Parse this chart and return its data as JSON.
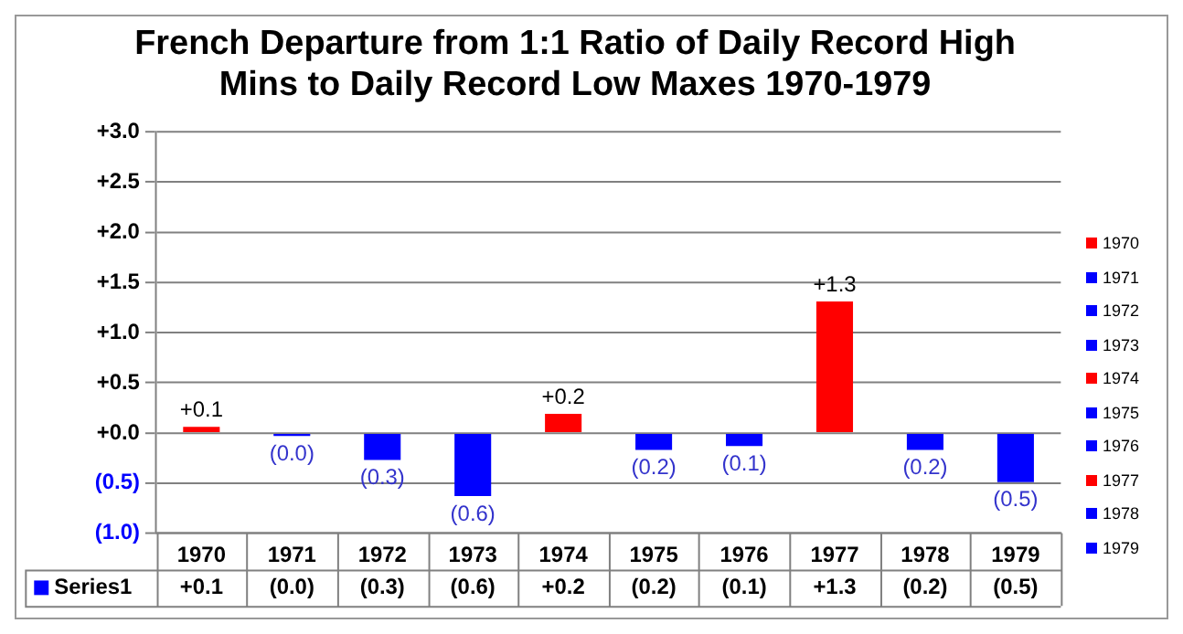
{
  "chart_data": {
    "type": "bar",
    "title": "French Departure from 1:1 Ratio of Daily Record High Mins to Daily Record Low Maxes 1970-1979",
    "categories": [
      "1970",
      "1971",
      "1972",
      "1973",
      "1974",
      "1975",
      "1976",
      "1977",
      "1978",
      "1979"
    ],
    "series": [
      {
        "name": "Series1",
        "color": "#0000ff",
        "colors": [
          "#ff0000",
          "#0000ff",
          "#0000ff",
          "#0000ff",
          "#ff0000",
          "#0000ff",
          "#0000ff",
          "#ff0000",
          "#0000ff",
          "#0000ff"
        ],
        "values": [
          0.06,
          -0.03,
          -0.27,
          -0.63,
          0.19,
          -0.17,
          -0.13,
          1.31,
          -0.17,
          -0.49
        ],
        "value_labels": [
          "+0.1",
          "(0.0)",
          "(0.3)",
          "(0.6)",
          "+0.2",
          "(0.2)",
          "(0.1)",
          "+1.3",
          "(0.2)",
          "(0.5)"
        ]
      }
    ],
    "ylim": [
      -1,
      3
    ],
    "yticks": [
      {
        "value": -1,
        "label": "(1.0)"
      },
      {
        "value": -0.5,
        "label": "(0.5)"
      },
      {
        "value": 0,
        "label": "+0.0"
      },
      {
        "value": 0.5,
        "label": "+0.5"
      },
      {
        "value": 1,
        "label": "+1.0"
      },
      {
        "value": 1.5,
        "label": "+1.5"
      },
      {
        "value": 2,
        "label": "+2.0"
      },
      {
        "value": 2.5,
        "label": "+2.5"
      },
      {
        "value": 3,
        "label": "+3.0"
      }
    ],
    "grid": "y",
    "legend": "bottom left",
    "data_labels": false
  }
}
